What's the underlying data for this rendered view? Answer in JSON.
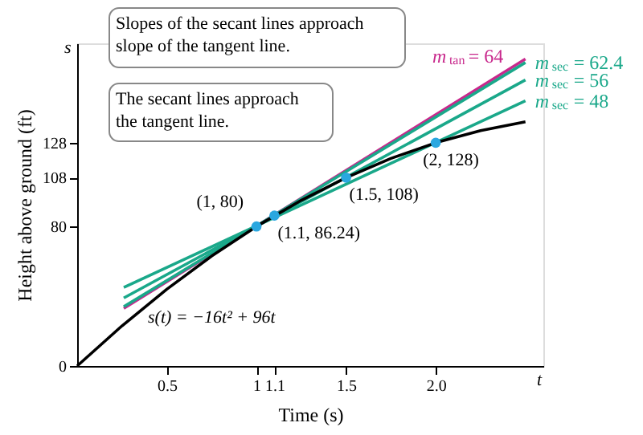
{
  "chart_data": {
    "type": "line",
    "xlabel": "Time (s)",
    "ylabel": "Height above ground (ft)",
    "xlim": [
      0,
      2.6
    ],
    "ylim": [
      0,
      185
    ],
    "xticks": [
      {
        "value": 0.5,
        "label": "0.5"
      },
      1,
      1.1,
      1.5,
      {
        "value": 2,
        "label": "2.0"
      }
    ],
    "yticks": [
      0,
      80,
      108,
      128
    ],
    "grid": false,
    "legend": false,
    "series": [
      {
        "color": "#000000",
        "marker": "none",
        "x": [
          0,
          0.25,
          0.5,
          0.75,
          1,
          1.25,
          1.5,
          1.75,
          2,
          2.25,
          2.5
        ],
        "values": [
          0,
          23,
          44,
          63,
          80,
          95,
          108,
          119,
          128,
          135,
          140
        ]
      },
      {
        "name": "m$_{tan}$ = 64",
        "color": "#c8288c",
        "marker": "none",
        "x": [
          0.26,
          2.5
        ],
        "values": [
          33,
          176
        ]
      },
      {
        "name": "m$_{sec}$ = 62.4",
        "color": "#1aa88a",
        "marker": "none",
        "x": [
          0.26,
          2.5
        ],
        "values": [
          34,
          174
        ]
      },
      {
        "name": "m$_{sec}$ = 56",
        "color": "#1aa88a",
        "marker": "none",
        "x": [
          0.26,
          2.5
        ],
        "values": [
          39,
          164
        ]
      },
      {
        "name": "m$_{sec}$ = 48",
        "color": "#1aa88a",
        "marker": "none",
        "x": [
          0.26,
          2.5
        ],
        "values": [
          45,
          152
        ]
      },
      {
        "type": "scatter",
        "color": "#2aa7e0",
        "marker": "circle",
        "x": [
          1,
          1.1,
          1.5,
          2
        ],
        "values": [
          80,
          86.24,
          108,
          128
        ]
      }
    ],
    "annotations": [
      "Slopes of the secant lines approach\nslope of the tangent line.",
      "The secant lines approach\nthe tangent line.",
      "s(t) = −16t² + 96t",
      "s",
      "t",
      {
        "text": "(1, 80)",
        "x": 1,
        "y": 80
      },
      {
        "text": "(1.1, 86.24)",
        "x": 1.1,
        "y": 86.24
      },
      {
        "text": "(1.5, 108)",
        "x": 1.5,
        "y": 108
      },
      {
        "text": "(2, 128)",
        "x": 2,
        "y": 128
      }
    ]
  }
}
